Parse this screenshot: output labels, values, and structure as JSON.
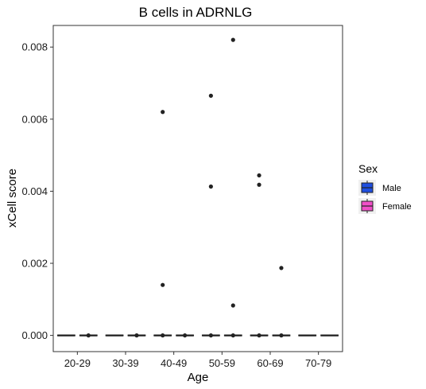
{
  "chart_data": {
    "type": "box",
    "title": "B cells in ADRNLG",
    "xlabel": "Age",
    "ylabel": "xCell score",
    "categories": [
      "20-29",
      "30-39",
      "40-49",
      "50-59",
      "60-69",
      "70-79"
    ],
    "ylim": [
      -0.00045,
      0.0086
    ],
    "yticks": [
      0.0,
      0.002,
      0.004,
      0.006,
      0.008
    ],
    "ytick_labels": [
      "0.000",
      "0.002",
      "0.004",
      "0.006",
      "0.008"
    ],
    "grid": false,
    "legend": {
      "title": "Sex",
      "position": "right",
      "entries": [
        {
          "name": "Male",
          "color": "#1f4fe0"
        },
        {
          "name": "Female",
          "color": "#f04fc8"
        }
      ]
    },
    "series": [
      {
        "name": "Male",
        "color": "#1f4fe0",
        "boxes": [
          {
            "category": "20-29",
            "min": 0,
            "q1": 0,
            "median": 0,
            "q3": 0,
            "max": 0,
            "outliers": []
          },
          {
            "category": "30-39",
            "min": 0,
            "q1": 0,
            "median": 0,
            "q3": 0,
            "max": 0,
            "outliers": []
          },
          {
            "category": "40-49",
            "min": 0,
            "q1": 0,
            "median": 0,
            "q3": 0,
            "max": 0,
            "outliers": [
              0.0062,
              0.0014,
              0
            ]
          },
          {
            "category": "50-59",
            "min": 0,
            "q1": 0,
            "median": 0,
            "q3": 0,
            "max": 0,
            "outliers": [
              0.00665,
              0.00413,
              0
            ]
          },
          {
            "category": "60-69",
            "min": 0,
            "q1": 0,
            "median": 0,
            "q3": 0,
            "max": 0,
            "outliers": [
              0.00444,
              0.00418,
              0
            ]
          },
          {
            "category": "70-79",
            "min": 0,
            "q1": 0,
            "median": 0,
            "q3": 0,
            "max": 0,
            "outliers": []
          }
        ]
      },
      {
        "name": "Female",
        "color": "#f04fc8",
        "boxes": [
          {
            "category": "20-29",
            "min": 0,
            "q1": 0,
            "median": 0,
            "q3": 0,
            "max": 0,
            "outliers": [
              0
            ]
          },
          {
            "category": "30-39",
            "min": 0,
            "q1": 0,
            "median": 0,
            "q3": 0,
            "max": 0,
            "outliers": [
              0
            ]
          },
          {
            "category": "40-49",
            "min": 0,
            "q1": 0,
            "median": 0,
            "q3": 0,
            "max": 0,
            "outliers": [
              0
            ]
          },
          {
            "category": "50-59",
            "min": 0,
            "q1": 0,
            "median": 0,
            "q3": 0,
            "max": 0,
            "outliers": [
              0.0082,
              0.00083,
              0
            ]
          },
          {
            "category": "60-69",
            "min": 0,
            "q1": 0,
            "median": 0,
            "q3": 0,
            "max": 0,
            "outliers": [
              0.00187,
              0
            ]
          },
          {
            "category": "70-79",
            "min": 0,
            "q1": 0,
            "median": 0,
            "q3": 0,
            "max": 0,
            "outliers": []
          }
        ]
      }
    ]
  }
}
